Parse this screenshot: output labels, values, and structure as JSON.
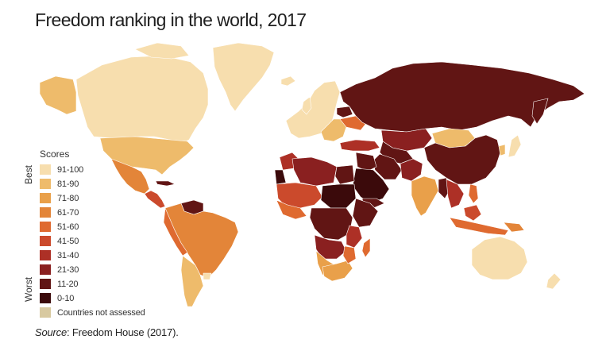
{
  "title": "Freedom ranking in the world, 2017",
  "legend": {
    "heading": "Scores",
    "best_label": "Best",
    "worst_label": "Worst",
    "items": [
      {
        "label": "91-100",
        "color": "#f7deae"
      },
      {
        "label": "81-90",
        "color": "#eebb6b"
      },
      {
        "label": "71-80",
        "color": "#e9a04a"
      },
      {
        "label": "61-70",
        "color": "#e38539"
      },
      {
        "label": "51-60",
        "color": "#df6a30"
      },
      {
        "label": "41-50",
        "color": "#cb4a2c"
      },
      {
        "label": "31-40",
        "color": "#ad3026"
      },
      {
        "label": "21-30",
        "color": "#8a2020"
      },
      {
        "label": "11-20",
        "color": "#611514"
      },
      {
        "label": "0-10",
        "color": "#3b0a0b"
      },
      {
        "label": "Countries not assessed",
        "color": "#d8c9a0"
      }
    ]
  },
  "source": {
    "label": "Source",
    "text": ": Freedom House (2017)."
  }
}
